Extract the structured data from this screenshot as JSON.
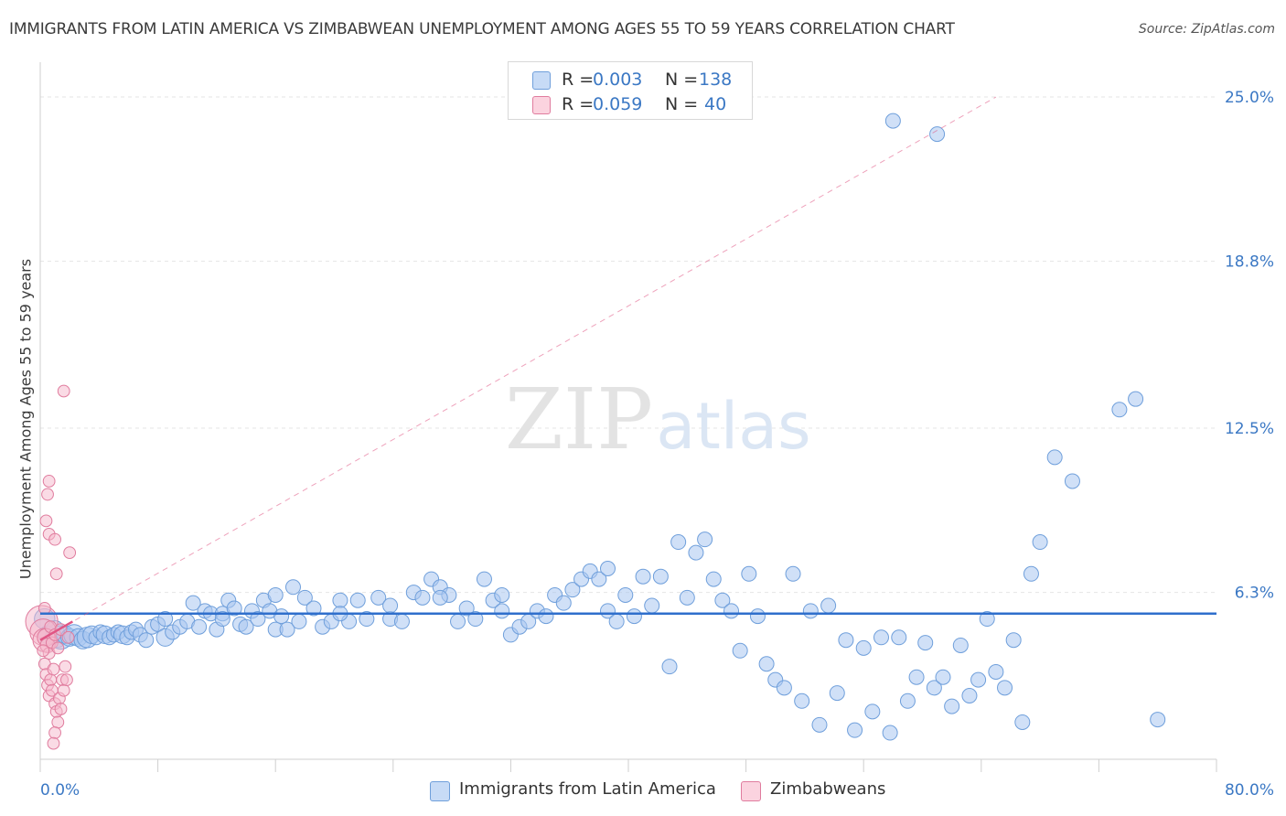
{
  "header": {
    "title": "IMMIGRANTS FROM LATIN AMERICA VS ZIMBABWEAN UNEMPLOYMENT AMONG AGES 55 TO 59 YEARS CORRELATION CHART",
    "source": "Source: ZipAtlas.com"
  },
  "watermark": {
    "zip": "ZIP",
    "atlas": "atlas"
  },
  "legend_top": {
    "rows": [
      {
        "r_label": "R =",
        "r_value": "0.003",
        "n_label": "N =",
        "n_value": "138"
      },
      {
        "r_label": "R =",
        "r_value": "0.059",
        "n_label": "N =",
        "n_value": "40"
      }
    ]
  },
  "legend_bottom": {
    "items": [
      {
        "label": "Immigrants from Latin America"
      },
      {
        "label": "Zimbabweans"
      }
    ]
  },
  "colors": {
    "blue_fill": "#a9c6f0",
    "blue_stroke": "#6f9fdb",
    "blue_line": "#2f6fcc",
    "pink_fill": "#f6b8cb",
    "pink_stroke": "#e07c9e",
    "pink_line": "#e05584",
    "tick_text": "#3b78c4",
    "grid": "#e5e5e5"
  },
  "chart_data": {
    "type": "scatter",
    "title": "IMMIGRANTS FROM LATIN AMERICA VS ZIMBABWEAN UNEMPLOYMENT AMONG AGES 55 TO 59 YEARS CORRELATION CHART",
    "xlabel": "",
    "ylabel": "Unemployment Among Ages 55 to 59 years",
    "xlim": [
      0,
      80
    ],
    "ylim": [
      0,
      25.9
    ],
    "x_tick_labels": [
      "0.0%",
      "80.0%"
    ],
    "y_ticks": [
      6.3,
      12.5,
      18.8,
      25.0
    ],
    "y_tick_labels": [
      "6.3%",
      "12.5%",
      "18.8%",
      "25.0%"
    ],
    "grid": true,
    "legend_position": "top-center",
    "series": [
      {
        "name": "Immigrants from Latin America",
        "color": "blue",
        "trend": {
          "x": [
            0,
            80
          ],
          "y": [
            5.5,
            5.5
          ]
        },
        "points": [
          [
            0.3,
            5.3,
            14
          ],
          [
            0.5,
            4.7,
            12
          ],
          [
            0.8,
            4.6,
            10
          ],
          [
            1.0,
            4.9,
            12
          ],
          [
            1.2,
            4.5,
            10
          ],
          [
            1.4,
            4.6,
            16
          ],
          [
            1.7,
            4.7,
            12
          ],
          [
            2.0,
            4.6,
            12
          ],
          [
            2.3,
            4.7,
            14
          ],
          [
            2.6,
            4.6,
            12
          ],
          [
            2.9,
            4.5,
            12
          ],
          [
            3.2,
            4.6,
            14
          ],
          [
            3.5,
            4.7,
            12
          ],
          [
            3.8,
            4.6,
            10
          ],
          [
            4.1,
            4.8,
            10
          ],
          [
            4.4,
            4.7,
            12
          ],
          [
            4.7,
            4.6,
            10
          ],
          [
            5.0,
            4.7,
            10
          ],
          [
            5.3,
            4.8,
            10
          ],
          [
            5.6,
            4.7,
            12
          ],
          [
            5.9,
            4.6,
            10
          ],
          [
            6.2,
            4.8,
            10
          ],
          [
            6.5,
            4.9,
            10
          ],
          [
            6.8,
            4.7,
            10
          ],
          [
            7.2,
            4.5,
            10
          ],
          [
            7.6,
            5.0,
            10
          ],
          [
            8.0,
            5.1,
            10
          ],
          [
            8.5,
            4.6,
            12
          ],
          [
            9.0,
            4.8,
            10
          ],
          [
            9.5,
            5.0,
            10
          ],
          [
            10.0,
            5.2,
            10
          ],
          [
            10.4,
            5.9,
            10
          ],
          [
            10.8,
            5.0,
            10
          ],
          [
            11.2,
            5.6,
            10
          ],
          [
            11.6,
            5.5,
            10
          ],
          [
            12.0,
            4.9,
            10
          ],
          [
            12.4,
            5.5,
            10
          ],
          [
            12.8,
            6.0,
            10
          ],
          [
            13.2,
            5.7,
            10
          ],
          [
            13.6,
            5.1,
            10
          ],
          [
            14.0,
            5.0,
            10
          ],
          [
            14.4,
            5.6,
            10
          ],
          [
            14.8,
            5.3,
            10
          ],
          [
            15.2,
            6.0,
            10
          ],
          [
            15.6,
            5.6,
            10
          ],
          [
            16.0,
            4.9,
            10
          ],
          [
            16.4,
            5.4,
            10
          ],
          [
            16.8,
            4.9,
            10
          ],
          [
            17.2,
            6.5,
            10
          ],
          [
            17.6,
            5.2,
            10
          ],
          [
            18.0,
            6.1,
            10
          ],
          [
            18.6,
            5.7,
            10
          ],
          [
            19.2,
            5.0,
            10
          ],
          [
            19.8,
            5.2,
            10
          ],
          [
            20.4,
            6.0,
            10
          ],
          [
            21.0,
            5.2,
            10
          ],
          [
            21.6,
            6.0,
            10
          ],
          [
            22.2,
            5.3,
            10
          ],
          [
            23.0,
            6.1,
            10
          ],
          [
            23.8,
            5.3,
            10
          ],
          [
            24.6,
            5.2,
            10
          ],
          [
            25.4,
            6.3,
            10
          ],
          [
            26.0,
            6.1,
            10
          ],
          [
            26.6,
            6.8,
            10
          ],
          [
            27.2,
            6.5,
            10
          ],
          [
            27.8,
            6.2,
            10
          ],
          [
            28.4,
            5.2,
            10
          ],
          [
            29.0,
            5.7,
            10
          ],
          [
            29.6,
            5.3,
            10
          ],
          [
            30.2,
            6.8,
            10
          ],
          [
            30.8,
            6.0,
            10
          ],
          [
            31.4,
            5.6,
            10
          ],
          [
            32.0,
            4.7,
            10
          ],
          [
            32.6,
            5.0,
            10
          ],
          [
            33.2,
            5.2,
            10
          ],
          [
            33.8,
            5.6,
            10
          ],
          [
            34.4,
            5.4,
            10
          ],
          [
            35.0,
            6.2,
            10
          ],
          [
            35.6,
            5.9,
            10
          ],
          [
            36.2,
            6.4,
            10
          ],
          [
            36.8,
            6.8,
            10
          ],
          [
            37.4,
            7.1,
            10
          ],
          [
            38.0,
            6.8,
            10
          ],
          [
            38.6,
            5.6,
            10
          ],
          [
            39.2,
            5.2,
            10
          ],
          [
            39.8,
            6.2,
            10
          ],
          [
            40.4,
            5.4,
            10
          ],
          [
            41.0,
            6.9,
            10
          ],
          [
            41.6,
            5.8,
            10
          ],
          [
            42.2,
            6.9,
            10
          ],
          [
            42.8,
            3.5,
            10
          ],
          [
            43.4,
            8.2,
            10
          ],
          [
            44.0,
            6.1,
            10
          ],
          [
            44.6,
            7.8,
            10
          ],
          [
            45.2,
            8.3,
            10
          ],
          [
            45.8,
            6.8,
            10
          ],
          [
            46.4,
            6.0,
            10
          ],
          [
            47.0,
            5.6,
            10
          ],
          [
            47.6,
            4.1,
            10
          ],
          [
            48.2,
            7.0,
            10
          ],
          [
            48.8,
            5.4,
            10
          ],
          [
            49.4,
            3.6,
            10
          ],
          [
            50.0,
            3.0,
            10
          ],
          [
            50.6,
            2.7,
            10
          ],
          [
            51.2,
            7.0,
            10
          ],
          [
            51.8,
            2.2,
            10
          ],
          [
            52.4,
            5.6,
            10
          ],
          [
            53.0,
            1.3,
            10
          ],
          [
            53.6,
            5.8,
            10
          ],
          [
            54.2,
            2.5,
            10
          ],
          [
            54.8,
            4.5,
            10
          ],
          [
            55.4,
            1.1,
            10
          ],
          [
            56.0,
            4.2,
            10
          ],
          [
            56.6,
            1.8,
            10
          ],
          [
            57.2,
            4.6,
            10
          ],
          [
            57.8,
            1.0,
            10
          ],
          [
            58.4,
            4.6,
            10
          ],
          [
            59.0,
            2.2,
            10
          ],
          [
            59.6,
            3.1,
            10
          ],
          [
            60.2,
            4.4,
            10
          ],
          [
            60.8,
            2.7,
            10
          ],
          [
            61.4,
            3.1,
            10
          ],
          [
            62.0,
            2.0,
            10
          ],
          [
            62.6,
            4.3,
            10
          ],
          [
            63.2,
            2.4,
            10
          ],
          [
            63.8,
            3.0,
            10
          ],
          [
            64.4,
            5.3,
            10
          ],
          [
            65.0,
            3.3,
            10
          ],
          [
            65.6,
            2.7,
            10
          ],
          [
            66.2,
            4.5,
            10
          ],
          [
            66.8,
            1.4,
            10
          ],
          [
            67.4,
            7.0,
            10
          ],
          [
            68.0,
            8.2,
            10
          ],
          [
            69.0,
            11.4,
            10
          ],
          [
            70.2,
            10.5,
            10
          ],
          [
            73.4,
            13.2,
            10
          ],
          [
            74.5,
            13.6,
            10
          ],
          [
            76.0,
            1.5,
            10
          ],
          [
            58.0,
            24.1,
            10
          ],
          [
            61.0,
            23.6,
            10
          ],
          [
            38.6,
            7.2,
            10
          ],
          [
            31.4,
            6.2,
            10
          ],
          [
            27.2,
            6.1,
            10
          ],
          [
            23.8,
            5.8,
            10
          ],
          [
            20.4,
            5.5,
            10
          ],
          [
            16.0,
            6.2,
            10
          ],
          [
            12.4,
            5.3,
            10
          ],
          [
            8.5,
            5.3,
            10
          ]
        ]
      },
      {
        "name": "Zimbabweans",
        "color": "pink",
        "trend": {
          "x": [
            0,
            2.2
          ],
          "y": [
            4.5,
            5.2
          ]
        },
        "trend_extended": {
          "x": [
            0,
            65
          ],
          "y": [
            4.5,
            25.0
          ]
        },
        "points": [
          [
            0.1,
            5.2,
            22
          ],
          [
            0.2,
            4.8,
            18
          ],
          [
            0.3,
            4.5,
            16
          ],
          [
            0.4,
            4.6,
            12
          ],
          [
            0.5,
            4.3,
            10
          ],
          [
            0.6,
            4.0,
            8
          ],
          [
            0.3,
            3.6,
            8
          ],
          [
            0.4,
            3.2,
            8
          ],
          [
            0.5,
            2.8,
            8
          ],
          [
            0.6,
            2.4,
            8
          ],
          [
            0.7,
            3.0,
            8
          ],
          [
            0.8,
            2.6,
            8
          ],
          [
            0.9,
            3.4,
            8
          ],
          [
            1.0,
            2.1,
            8
          ],
          [
            1.1,
            1.8,
            8
          ],
          [
            1.2,
            1.4,
            8
          ],
          [
            1.0,
            1.0,
            8
          ],
          [
            0.9,
            0.6,
            8
          ],
          [
            1.3,
            2.3,
            8
          ],
          [
            1.4,
            1.9,
            8
          ],
          [
            1.5,
            3.0,
            8
          ],
          [
            1.6,
            2.6,
            8
          ],
          [
            1.7,
            3.5,
            8
          ],
          [
            1.8,
            3.0,
            8
          ],
          [
            0.6,
            10.5,
            8
          ],
          [
            0.5,
            10.0,
            8
          ],
          [
            0.4,
            9.0,
            8
          ],
          [
            0.6,
            8.5,
            8
          ],
          [
            1.0,
            8.3,
            8
          ],
          [
            2.0,
            7.8,
            8
          ],
          [
            1.1,
            7.0,
            8
          ],
          [
            1.6,
            13.9,
            8
          ],
          [
            0.7,
            5.0,
            8
          ],
          [
            0.8,
            4.4,
            8
          ],
          [
            1.0,
            4.7,
            8
          ],
          [
            1.2,
            4.2,
            8
          ],
          [
            1.4,
            4.9,
            8
          ],
          [
            1.9,
            4.6,
            8
          ],
          [
            0.3,
            5.7,
            8
          ],
          [
            0.2,
            4.1,
            8
          ]
        ]
      }
    ]
  }
}
